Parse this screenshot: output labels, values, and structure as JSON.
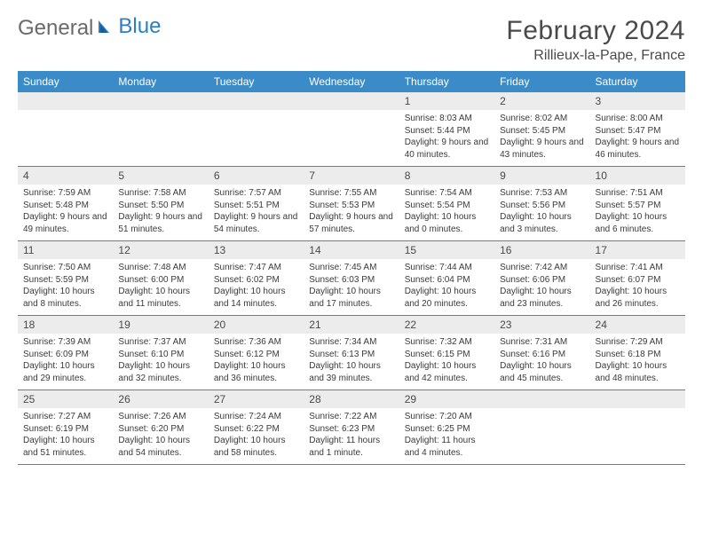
{
  "brand": {
    "part1": "General",
    "part2": "Blue"
  },
  "title": "February 2024",
  "location": "Rillieux-la-Pape, France",
  "colors": {
    "header_bg": "#3b8bc9",
    "header_text": "#ffffff",
    "daynum_bg": "#ececec",
    "row_divider": "#3b8bc9",
    "brand_gray": "#6a6a6a",
    "brand_blue": "#2b7fc3"
  },
  "day_names": [
    "Sunday",
    "Monday",
    "Tuesday",
    "Wednesday",
    "Thursday",
    "Friday",
    "Saturday"
  ],
  "weeks": [
    [
      {
        "n": "",
        "sr": "",
        "ss": "",
        "dl": ""
      },
      {
        "n": "",
        "sr": "",
        "ss": "",
        "dl": ""
      },
      {
        "n": "",
        "sr": "",
        "ss": "",
        "dl": ""
      },
      {
        "n": "",
        "sr": "",
        "ss": "",
        "dl": ""
      },
      {
        "n": "1",
        "sr": "Sunrise: 8:03 AM",
        "ss": "Sunset: 5:44 PM",
        "dl": "Daylight: 9 hours and 40 minutes."
      },
      {
        "n": "2",
        "sr": "Sunrise: 8:02 AM",
        "ss": "Sunset: 5:45 PM",
        "dl": "Daylight: 9 hours and 43 minutes."
      },
      {
        "n": "3",
        "sr": "Sunrise: 8:00 AM",
        "ss": "Sunset: 5:47 PM",
        "dl": "Daylight: 9 hours and 46 minutes."
      }
    ],
    [
      {
        "n": "4",
        "sr": "Sunrise: 7:59 AM",
        "ss": "Sunset: 5:48 PM",
        "dl": "Daylight: 9 hours and 49 minutes."
      },
      {
        "n": "5",
        "sr": "Sunrise: 7:58 AM",
        "ss": "Sunset: 5:50 PM",
        "dl": "Daylight: 9 hours and 51 minutes."
      },
      {
        "n": "6",
        "sr": "Sunrise: 7:57 AM",
        "ss": "Sunset: 5:51 PM",
        "dl": "Daylight: 9 hours and 54 minutes."
      },
      {
        "n": "7",
        "sr": "Sunrise: 7:55 AM",
        "ss": "Sunset: 5:53 PM",
        "dl": "Daylight: 9 hours and 57 minutes."
      },
      {
        "n": "8",
        "sr": "Sunrise: 7:54 AM",
        "ss": "Sunset: 5:54 PM",
        "dl": "Daylight: 10 hours and 0 minutes."
      },
      {
        "n": "9",
        "sr": "Sunrise: 7:53 AM",
        "ss": "Sunset: 5:56 PM",
        "dl": "Daylight: 10 hours and 3 minutes."
      },
      {
        "n": "10",
        "sr": "Sunrise: 7:51 AM",
        "ss": "Sunset: 5:57 PM",
        "dl": "Daylight: 10 hours and 6 minutes."
      }
    ],
    [
      {
        "n": "11",
        "sr": "Sunrise: 7:50 AM",
        "ss": "Sunset: 5:59 PM",
        "dl": "Daylight: 10 hours and 8 minutes."
      },
      {
        "n": "12",
        "sr": "Sunrise: 7:48 AM",
        "ss": "Sunset: 6:00 PM",
        "dl": "Daylight: 10 hours and 11 minutes."
      },
      {
        "n": "13",
        "sr": "Sunrise: 7:47 AM",
        "ss": "Sunset: 6:02 PM",
        "dl": "Daylight: 10 hours and 14 minutes."
      },
      {
        "n": "14",
        "sr": "Sunrise: 7:45 AM",
        "ss": "Sunset: 6:03 PM",
        "dl": "Daylight: 10 hours and 17 minutes."
      },
      {
        "n": "15",
        "sr": "Sunrise: 7:44 AM",
        "ss": "Sunset: 6:04 PM",
        "dl": "Daylight: 10 hours and 20 minutes."
      },
      {
        "n": "16",
        "sr": "Sunrise: 7:42 AM",
        "ss": "Sunset: 6:06 PM",
        "dl": "Daylight: 10 hours and 23 minutes."
      },
      {
        "n": "17",
        "sr": "Sunrise: 7:41 AM",
        "ss": "Sunset: 6:07 PM",
        "dl": "Daylight: 10 hours and 26 minutes."
      }
    ],
    [
      {
        "n": "18",
        "sr": "Sunrise: 7:39 AM",
        "ss": "Sunset: 6:09 PM",
        "dl": "Daylight: 10 hours and 29 minutes."
      },
      {
        "n": "19",
        "sr": "Sunrise: 7:37 AM",
        "ss": "Sunset: 6:10 PM",
        "dl": "Daylight: 10 hours and 32 minutes."
      },
      {
        "n": "20",
        "sr": "Sunrise: 7:36 AM",
        "ss": "Sunset: 6:12 PM",
        "dl": "Daylight: 10 hours and 36 minutes."
      },
      {
        "n": "21",
        "sr": "Sunrise: 7:34 AM",
        "ss": "Sunset: 6:13 PM",
        "dl": "Daylight: 10 hours and 39 minutes."
      },
      {
        "n": "22",
        "sr": "Sunrise: 7:32 AM",
        "ss": "Sunset: 6:15 PM",
        "dl": "Daylight: 10 hours and 42 minutes."
      },
      {
        "n": "23",
        "sr": "Sunrise: 7:31 AM",
        "ss": "Sunset: 6:16 PM",
        "dl": "Daylight: 10 hours and 45 minutes."
      },
      {
        "n": "24",
        "sr": "Sunrise: 7:29 AM",
        "ss": "Sunset: 6:18 PM",
        "dl": "Daylight: 10 hours and 48 minutes."
      }
    ],
    [
      {
        "n": "25",
        "sr": "Sunrise: 7:27 AM",
        "ss": "Sunset: 6:19 PM",
        "dl": "Daylight: 10 hours and 51 minutes."
      },
      {
        "n": "26",
        "sr": "Sunrise: 7:26 AM",
        "ss": "Sunset: 6:20 PM",
        "dl": "Daylight: 10 hours and 54 minutes."
      },
      {
        "n": "27",
        "sr": "Sunrise: 7:24 AM",
        "ss": "Sunset: 6:22 PM",
        "dl": "Daylight: 10 hours and 58 minutes."
      },
      {
        "n": "28",
        "sr": "Sunrise: 7:22 AM",
        "ss": "Sunset: 6:23 PM",
        "dl": "Daylight: 11 hours and 1 minute."
      },
      {
        "n": "29",
        "sr": "Sunrise: 7:20 AM",
        "ss": "Sunset: 6:25 PM",
        "dl": "Daylight: 11 hours and 4 minutes."
      },
      {
        "n": "",
        "sr": "",
        "ss": "",
        "dl": ""
      },
      {
        "n": "",
        "sr": "",
        "ss": "",
        "dl": ""
      }
    ]
  ]
}
